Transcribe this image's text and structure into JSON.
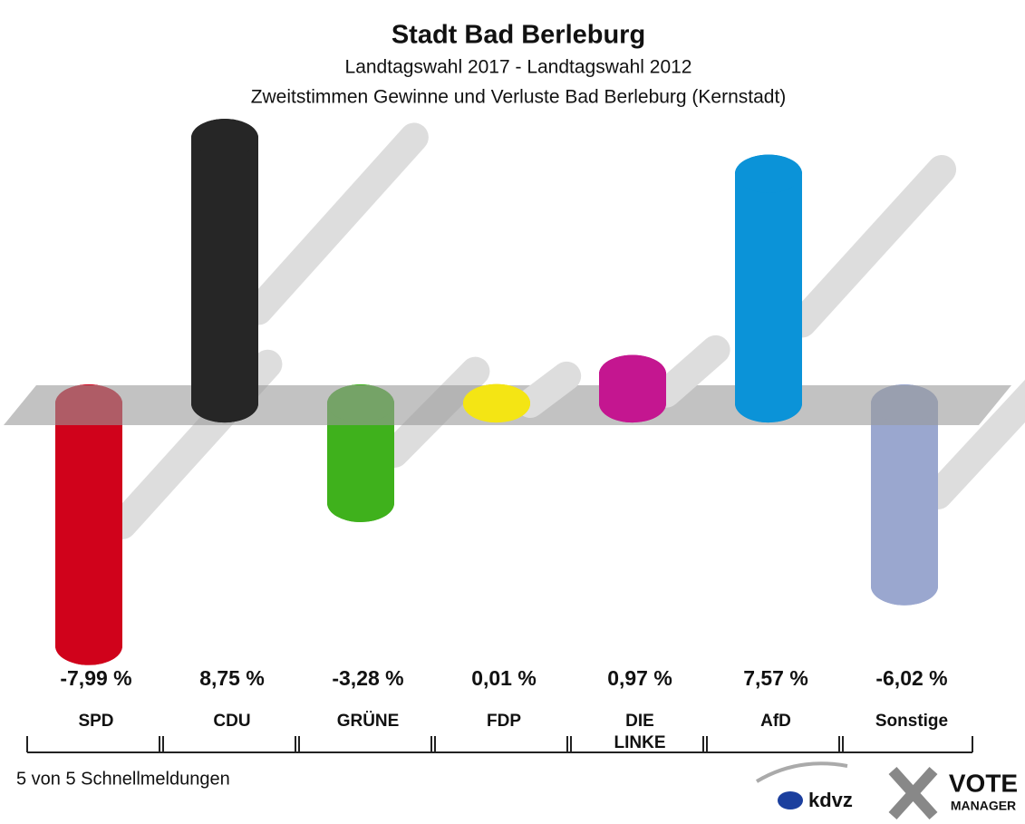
{
  "chart_data": {
    "type": "bar",
    "title": "Stadt Bad Berleburg",
    "subtitle": [
      "Landtagswahl 2017 - Landtagswahl 2012",
      "Zweitstimmen Gewinne und Verluste Bad Berleburg (Kernstadt)"
    ],
    "categories": [
      "SPD",
      "CDU",
      "GRÜNE",
      "FDP",
      "DIE\nLINKE",
      "AfD",
      "Sonstige"
    ],
    "values": [
      -7.99,
      8.75,
      -3.28,
      0.01,
      0.97,
      7.57,
      -6.02
    ],
    "value_labels": [
      "-7,99 %",
      "8,75 %",
      "-3,28 %",
      "0,01 %",
      "0,97 %",
      "7,57 %",
      "-6,02 %"
    ],
    "colors": [
      "#d0021b",
      "#262626",
      "#3fb11c",
      "#f4e514",
      "#c41690",
      "#0b93d8",
      "#9aa7cf"
    ],
    "ylim": [
      -9,
      9.5
    ],
    "footnote": "5 von 5 Schnellmeldungen",
    "logos": [
      "kdvz",
      "VOTE",
      "MANAGER"
    ]
  }
}
